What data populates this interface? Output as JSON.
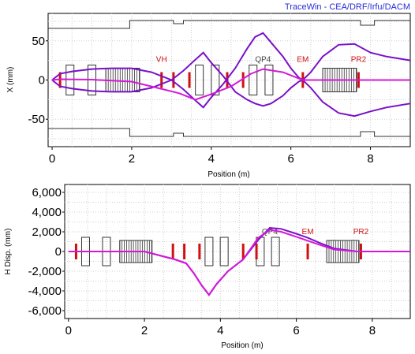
{
  "app": {
    "banner": "TraceWin - CEA/DRF/Irfu/DACM"
  },
  "chart_data": [
    {
      "type": "line",
      "title": "",
      "xlabel": "Position (m)",
      "ylabel": "X (mm)",
      "xlim": [
        -0.1,
        9.0
      ],
      "ylim": [
        -85,
        85
      ],
      "x_ticks": [
        "0",
        "2",
        "4",
        "6",
        "8"
      ],
      "y_ticks": [
        "50",
        "0",
        "-50"
      ],
      "grid": true,
      "element_labels": [
        "VH",
        "QP4",
        "EM",
        "PR2"
      ],
      "series": [
        {
          "color": "#7a10c8",
          "x": [
            0.0,
            0.2,
            0.5,
            1.0,
            1.5,
            2.0,
            2.5,
            3.0,
            3.3,
            3.6,
            3.8,
            4.0,
            4.3,
            4.6,
            4.9,
            5.1,
            5.3,
            5.5,
            5.8,
            6.0,
            6.2,
            6.3,
            6.5,
            6.8,
            7.2,
            7.6,
            8.0,
            8.4,
            9.0
          ],
          "y": [
            0,
            8,
            11,
            14,
            15,
            15,
            10,
            0,
            -12,
            -26,
            -35,
            -22,
            -5,
            15,
            40,
            55,
            60,
            48,
            30,
            15,
            3,
            0,
            10,
            30,
            45,
            46,
            35,
            30,
            25
          ]
        },
        {
          "color": "#7a10c8",
          "x": [
            0.0,
            0.2,
            0.5,
            1.0,
            1.5,
            2.0,
            2.5,
            3.0,
            3.3,
            3.6,
            3.8,
            4.0,
            4.3,
            4.6,
            4.9,
            5.1,
            5.3,
            5.5,
            5.8,
            6.0,
            6.2,
            6.3,
            6.5,
            6.8,
            7.2,
            7.6,
            8.0,
            8.4,
            9.0
          ],
          "y": [
            0,
            -8,
            -11,
            -14,
            -15,
            -15,
            -10,
            0,
            12,
            26,
            35,
            22,
            5,
            -15,
            -25,
            -30,
            -33,
            -30,
            -20,
            -10,
            -2,
            0,
            -10,
            -28,
            -42,
            -46,
            -40,
            -35,
            -30
          ]
        },
        {
          "color": "#d418d8",
          "x": [
            0.0,
            0.2,
            1.0,
            2.0,
            2.8,
            3.2,
            3.6,
            4.0,
            4.5,
            5.0,
            5.3,
            5.8,
            6.3,
            6.6,
            7.0,
            8.0,
            9.0
          ],
          "y": [
            0,
            1,
            0.5,
            -2,
            -12,
            -17,
            -25,
            -18,
            -8,
            8,
            14,
            10,
            0,
            0,
            0,
            0,
            0
          ]
        }
      ]
    },
    {
      "type": "line",
      "title": "",
      "xlabel": "Position (m)",
      "ylabel": "H Disp. (mm)",
      "xlim": [
        -0.1,
        9.0
      ],
      "ylim": [
        -6800,
        6800
      ],
      "x_ticks": [
        "0",
        "2",
        "4",
        "6",
        "8"
      ],
      "y_ticks": [
        "6,000",
        "4,000",
        "2,000",
        "0",
        "-2,000",
        "-4,000",
        "-6,000"
      ],
      "grid": true,
      "element_labels": [
        "QP4",
        "EM",
        "PR2"
      ],
      "series": [
        {
          "color": "#7a10c8",
          "x": [
            0.0,
            2.0,
            2.8,
            3.1,
            3.3,
            3.5,
            3.7,
            3.9,
            4.2,
            4.6,
            5.0,
            5.3,
            5.6,
            6.0,
            6.3,
            6.6,
            7.0,
            7.6,
            8.0,
            9.0
          ],
          "y": [
            0,
            0,
            -800,
            -1200,
            -2200,
            -3400,
            -4400,
            -3300,
            -2000,
            -800,
            1200,
            2400,
            2300,
            1800,
            1400,
            900,
            300,
            0,
            0,
            0
          ]
        },
        {
          "color": "#d418d8",
          "x": [
            0.0,
            2.0,
            2.8,
            3.1,
            3.3,
            3.5,
            3.7,
            3.9,
            4.2,
            4.6,
            5.0,
            5.3,
            5.6,
            6.0,
            6.3,
            6.6,
            7.0,
            7.6,
            8.0,
            9.0
          ],
          "y": [
            0,
            0,
            -800,
            -1200,
            -2200,
            -3400,
            -4400,
            -3300,
            -2000,
            -800,
            1400,
            2200,
            2000,
            1500,
            1100,
            700,
            200,
            0,
            0,
            0
          ]
        }
      ]
    }
  ]
}
